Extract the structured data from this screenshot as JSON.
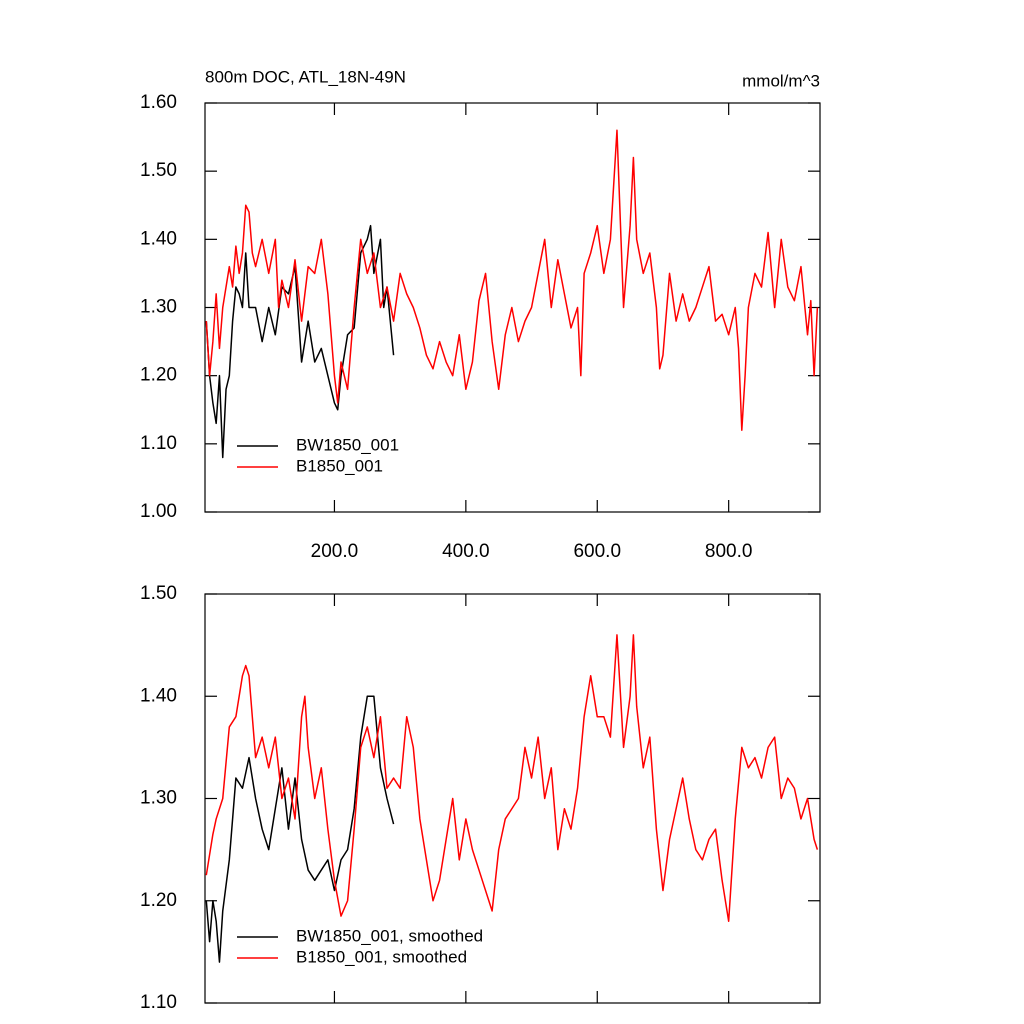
{
  "chart_data": [
    {
      "type": "line",
      "title": "800m DOC, ATL_18N-49N",
      "subtitle": "mmol/m^3",
      "xlim": [
        3,
        939
      ],
      "xticks": [
        {
          "value": 200,
          "label": "200.0"
        },
        {
          "value": 400,
          "label": "400.0"
        },
        {
          "value": 600,
          "label": "600.0"
        },
        {
          "value": 800,
          "label": "800.0"
        }
      ],
      "ylim": [
        1.0,
        1.6
      ],
      "yticks": [
        {
          "value": 1.0,
          "label": "1.00"
        },
        {
          "value": 1.1,
          "label": "1.10"
        },
        {
          "value": 1.2,
          "label": "1.20"
        },
        {
          "value": 1.3,
          "label": "1.30"
        },
        {
          "value": 1.4,
          "label": "1.40"
        },
        {
          "value": 1.5,
          "label": "1.50"
        },
        {
          "value": 1.6,
          "label": "1.60"
        }
      ],
      "show_xtick_labels": true,
      "legend": "lower left",
      "series": [
        {
          "name": "BW1850_001",
          "color": "#000000",
          "x": [
            5,
            10,
            15,
            20,
            25,
            30,
            35,
            40,
            45,
            50,
            55,
            60,
            65,
            70,
            80,
            90,
            100,
            110,
            120,
            130,
            140,
            150,
            160,
            170,
            180,
            190,
            200,
            205,
            210,
            220,
            230,
            240,
            250,
            255,
            260,
            270,
            275,
            280,
            290
          ],
          "values": [
            1.28,
            1.2,
            1.16,
            1.13,
            1.2,
            1.08,
            1.18,
            1.2,
            1.28,
            1.33,
            1.32,
            1.3,
            1.38,
            1.3,
            1.3,
            1.25,
            1.3,
            1.26,
            1.33,
            1.32,
            1.36,
            1.22,
            1.28,
            1.22,
            1.24,
            1.2,
            1.16,
            1.15,
            1.2,
            1.26,
            1.27,
            1.38,
            1.4,
            1.42,
            1.35,
            1.4,
            1.3,
            1.33,
            1.23
          ]
        },
        {
          "name": "B1850_001",
          "color": "#ff0000",
          "x": [
            5,
            10,
            15,
            20,
            25,
            30,
            40,
            45,
            50,
            55,
            60,
            65,
            70,
            75,
            80,
            90,
            100,
            110,
            115,
            120,
            130,
            140,
            150,
            160,
            170,
            180,
            190,
            200,
            205,
            210,
            220,
            230,
            240,
            250,
            260,
            270,
            280,
            290,
            300,
            310,
            320,
            330,
            340,
            350,
            360,
            370,
            380,
            390,
            400,
            410,
            420,
            430,
            440,
            450,
            460,
            470,
            480,
            490,
            500,
            510,
            520,
            530,
            540,
            550,
            560,
            570,
            575,
            580,
            590,
            600,
            610,
            620,
            630,
            640,
            650,
            655,
            660,
            670,
            680,
            690,
            695,
            700,
            710,
            720,
            730,
            740,
            750,
            760,
            770,
            780,
            790,
            800,
            810,
            815,
            820,
            825,
            830,
            840,
            850,
            860,
            870,
            880,
            890,
            900,
            910,
            920,
            925,
            930,
            935
          ],
          "values": [
            1.28,
            1.2,
            1.25,
            1.32,
            1.24,
            1.3,
            1.36,
            1.33,
            1.39,
            1.35,
            1.38,
            1.45,
            1.44,
            1.38,
            1.36,
            1.4,
            1.35,
            1.4,
            1.3,
            1.34,
            1.3,
            1.37,
            1.28,
            1.36,
            1.35,
            1.4,
            1.32,
            1.2,
            1.16,
            1.22,
            1.18,
            1.3,
            1.4,
            1.35,
            1.38,
            1.3,
            1.33,
            1.28,
            1.35,
            1.32,
            1.3,
            1.27,
            1.23,
            1.21,
            1.25,
            1.22,
            1.2,
            1.26,
            1.18,
            1.22,
            1.31,
            1.35,
            1.25,
            1.18,
            1.26,
            1.3,
            1.25,
            1.28,
            1.3,
            1.35,
            1.4,
            1.3,
            1.37,
            1.32,
            1.27,
            1.3,
            1.2,
            1.35,
            1.38,
            1.42,
            1.35,
            1.4,
            1.56,
            1.3,
            1.42,
            1.52,
            1.4,
            1.35,
            1.38,
            1.3,
            1.21,
            1.23,
            1.35,
            1.28,
            1.32,
            1.28,
            1.3,
            1.33,
            1.36,
            1.28,
            1.29,
            1.26,
            1.3,
            1.24,
            1.12,
            1.2,
            1.3,
            1.35,
            1.33,
            1.41,
            1.3,
            1.4,
            1.33,
            1.31,
            1.36,
            1.26,
            1.31,
            1.2,
            1.3
          ]
        }
      ]
    },
    {
      "type": "line",
      "xlim": [
        3,
        939
      ],
      "xticks": [
        200,
        400,
        600,
        800
      ],
      "ylim": [
        1.1,
        1.5
      ],
      "yticks": [
        {
          "value": 1.1,
          "label": "1.10"
        },
        {
          "value": 1.2,
          "label": "1.20"
        },
        {
          "value": 1.3,
          "label": "1.30"
        },
        {
          "value": 1.4,
          "label": "1.40"
        },
        {
          "value": 1.5,
          "label": "1.50"
        }
      ],
      "show_xtick_labels": false,
      "legend": "lower left",
      "series": [
        {
          "name": "BW1850_001, smoothed",
          "color": "#000000",
          "x": [
            5,
            10,
            15,
            20,
            25,
            30,
            40,
            50,
            60,
            70,
            80,
            90,
            100,
            110,
            120,
            130,
            140,
            150,
            160,
            170,
            180,
            190,
            200,
            210,
            220,
            230,
            240,
            250,
            260,
            270,
            280,
            290
          ],
          "values": [
            1.2,
            1.16,
            1.2,
            1.18,
            1.14,
            1.19,
            1.24,
            1.32,
            1.31,
            1.34,
            1.3,
            1.27,
            1.25,
            1.29,
            1.33,
            1.27,
            1.32,
            1.26,
            1.23,
            1.22,
            1.23,
            1.24,
            1.21,
            1.24,
            1.25,
            1.29,
            1.36,
            1.4,
            1.4,
            1.33,
            1.3,
            1.275
          ]
        },
        {
          "name": "B1850_001, smoothed",
          "color": "#ff0000",
          "x": [
            5,
            15,
            20,
            30,
            40,
            50,
            60,
            65,
            70,
            80,
            90,
            100,
            110,
            120,
            130,
            140,
            150,
            155,
            160,
            170,
            180,
            190,
            200,
            210,
            220,
            230,
            240,
            250,
            260,
            270,
            280,
            290,
            300,
            310,
            320,
            330,
            340,
            350,
            360,
            370,
            380,
            390,
            400,
            410,
            420,
            440,
            450,
            460,
            470,
            480,
            490,
            500,
            510,
            520,
            530,
            540,
            550,
            560,
            570,
            580,
            590,
            600,
            610,
            620,
            630,
            640,
            650,
            655,
            660,
            670,
            680,
            690,
            700,
            710,
            720,
            730,
            740,
            750,
            760,
            770,
            780,
            790,
            800,
            810,
            820,
            830,
            840,
            850,
            860,
            870,
            880,
            890,
            900,
            910,
            920,
            930,
            935
          ],
          "values": [
            1.225,
            1.265,
            1.28,
            1.3,
            1.37,
            1.38,
            1.42,
            1.43,
            1.42,
            1.34,
            1.36,
            1.33,
            1.36,
            1.3,
            1.32,
            1.28,
            1.38,
            1.4,
            1.35,
            1.3,
            1.33,
            1.27,
            1.22,
            1.185,
            1.2,
            1.27,
            1.35,
            1.37,
            1.34,
            1.38,
            1.31,
            1.32,
            1.31,
            1.38,
            1.35,
            1.28,
            1.24,
            1.2,
            1.22,
            1.26,
            1.3,
            1.24,
            1.28,
            1.25,
            1.23,
            1.19,
            1.25,
            1.28,
            1.29,
            1.3,
            1.35,
            1.32,
            1.36,
            1.3,
            1.33,
            1.25,
            1.29,
            1.27,
            1.31,
            1.38,
            1.42,
            1.38,
            1.38,
            1.36,
            1.46,
            1.35,
            1.4,
            1.46,
            1.39,
            1.33,
            1.36,
            1.27,
            1.21,
            1.26,
            1.29,
            1.32,
            1.28,
            1.25,
            1.24,
            1.26,
            1.27,
            1.22,
            1.18,
            1.28,
            1.35,
            1.33,
            1.34,
            1.32,
            1.35,
            1.36,
            1.3,
            1.32,
            1.31,
            1.28,
            1.3,
            1.26,
            1.25
          ]
        }
      ]
    }
  ]
}
